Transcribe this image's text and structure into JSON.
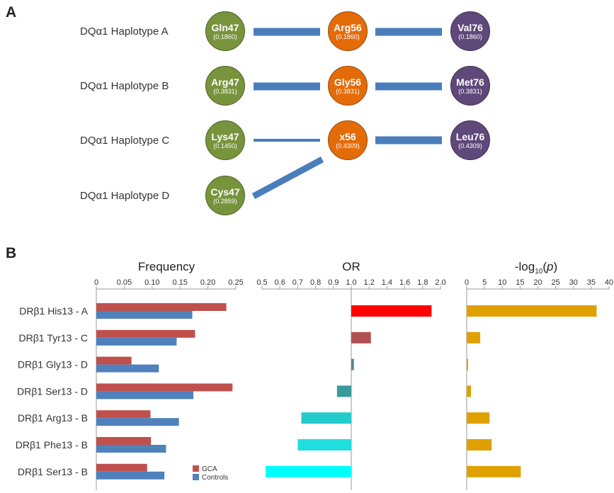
{
  "panel_a": {
    "letter": "A",
    "haplotypes": [
      {
        "label": "DQα1 Haplotype A",
        "nodes": [
          {
            "name": "Gln47",
            "freq": "(0.1860)",
            "color": "green"
          },
          {
            "name": "Arg56",
            "freq": "(0.1860)",
            "color": "orange"
          },
          {
            "name": "Val76",
            "freq": "(0.1860)",
            "color": "purple"
          }
        ]
      },
      {
        "label": "DQα1 Haplotype B",
        "nodes": [
          {
            "name": "Arg47",
            "freq": "(0.3831)",
            "color": "green"
          },
          {
            "name": "Gly56",
            "freq": "(0.3831)",
            "color": "orange"
          },
          {
            "name": "Met76",
            "freq": "(0.3831)",
            "color": "purple"
          }
        ]
      },
      {
        "label": "DQα1 Haplotype C",
        "nodes": [
          {
            "name": "Lys47",
            "freq": "(0.1450)",
            "color": "green"
          },
          {
            "name": "x56",
            "freq": "(0.4309)",
            "color": "orange"
          },
          {
            "name": "Leu76",
            "freq": "(0.4309)",
            "color": "purple"
          }
        ]
      },
      {
        "label": "DQα1 Haplotype D",
        "nodes": [
          {
            "name": "Cys47",
            "freq": "(0.2859)",
            "color": "green"
          }
        ]
      }
    ],
    "colors": {
      "green": "#77933c",
      "orange": "#e36c09",
      "purple": "#5f497a",
      "link": "#4a7ebb"
    }
  },
  "panel_b": {
    "letter": "B",
    "categories": [
      "DRβ1 His13 - A",
      "DRβ1 Tyr13 - C",
      "DRβ1 Gly13 - D",
      "DRβ1 Ser13 - D",
      "DRβ1 Arg13 - B",
      "DRβ1 Phe13 - B",
      "DRβ1 Ser13 - B"
    ],
    "legend": {
      "gca": "GCA",
      "controls": "Controls"
    }
  },
  "chart_data": [
    {
      "type": "bar",
      "orientation": "horizontal",
      "title": "Frequency",
      "categories": [
        "DRβ1 His13 - A",
        "DRβ1 Tyr13 - C",
        "DRβ1 Gly13 - D",
        "DRβ1 Ser13 - D",
        "DRβ1 Arg13 - B",
        "DRβ1 Phe13 - B",
        "DRβ1 Ser13 - B"
      ],
      "series": [
        {
          "name": "GCA",
          "color": "#c0504d",
          "values": [
            0.233,
            0.177,
            0.063,
            0.244,
            0.097,
            0.098,
            0.091
          ]
        },
        {
          "name": "Controls",
          "color": "#4f81bd",
          "values": [
            0.172,
            0.144,
            0.112,
            0.174,
            0.148,
            0.125,
            0.122
          ]
        }
      ],
      "xlim": [
        0,
        0.25
      ],
      "ticks": [
        "0",
        "0.05",
        "0.10",
        "0.15",
        "0.20",
        "0.25"
      ],
      "legend_position": "bottom-right"
    },
    {
      "type": "bar",
      "orientation": "horizontal",
      "title": "OR",
      "categories": [
        "DRβ1 His13 - A",
        "DRβ1 Tyr13 - C",
        "DRβ1 Gly13 - D",
        "DRβ1 Ser13 - D",
        "DRβ1 Arg13 - B",
        "DRβ1 Phe13 - B",
        "DRβ1 Ser13 - B"
      ],
      "values": [
        1.9,
        1.22,
        1.03,
        0.92,
        0.72,
        0.7,
        0.52
      ],
      "colors": [
        "#ff0000",
        "#b05050",
        "#5a8a8a",
        "#3a9a9a",
        "#22cccc",
        "#22dddd",
        "#00ffff"
      ],
      "baseline": 1.0,
      "xlim": [
        0.5,
        2.0
      ],
      "ticks": [
        "0.5",
        "0.6",
        "0.7",
        "0.8",
        "0.9",
        "1.0",
        "1.2",
        "1.4",
        "1.6",
        "1.8",
        "2.0"
      ]
    },
    {
      "type": "bar",
      "orientation": "horizontal",
      "title_parts": {
        "a": "-log",
        "sub": "10",
        "b": "(",
        "p": "p",
        "c": ")"
      },
      "categories": [
        "DRβ1 His13 - A",
        "DRβ1 Tyr13 - C",
        "DRβ1 Gly13 - D",
        "DRβ1 Ser13 - D",
        "DRβ1 Arg13 - B",
        "DRβ1 Phe13 - B",
        "DRβ1 Ser13 - B"
      ],
      "values": [
        36.5,
        3.8,
        0.3,
        1.2,
        6.4,
        7.0,
        15.2
      ],
      "color": "#e0a000",
      "xlim": [
        0,
        40
      ],
      "ticks": [
        "0",
        "5",
        "10",
        "15",
        "20",
        "25",
        "30",
        "35",
        "40"
      ]
    }
  ]
}
